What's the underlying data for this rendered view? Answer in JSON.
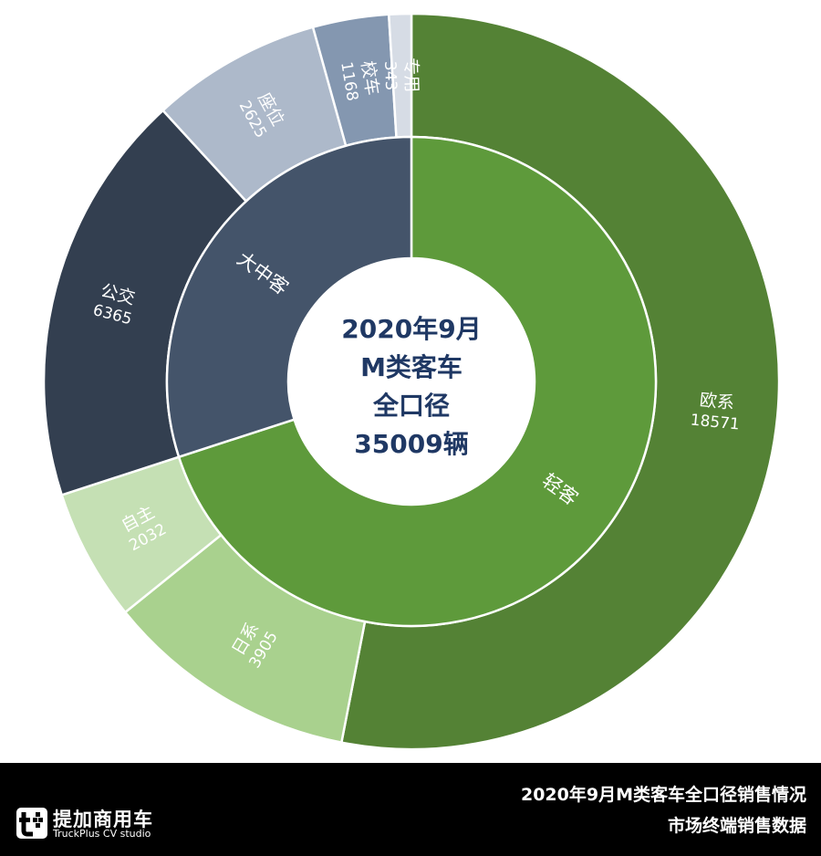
{
  "chart_data": {
    "type": "sunburst",
    "center_text": [
      "2020年9月",
      "M类客车",
      "全口径",
      "35009辆"
    ],
    "total": 35009,
    "inner": [
      {
        "name": "轻客",
        "value": 24508,
        "color": "#5e9a3b"
      },
      {
        "name": "大中客",
        "value": 10501,
        "color": "#44546a"
      }
    ],
    "outer": [
      {
        "name": "欧系",
        "value": 18571,
        "parent": "轻客",
        "color": "#548235"
      },
      {
        "name": "日系",
        "value": 3905,
        "parent": "轻客",
        "color": "#a9d18e"
      },
      {
        "name": "自主",
        "value": 2032,
        "parent": "轻客",
        "color": "#c5e0b4"
      },
      {
        "name": "公交",
        "value": 6365,
        "parent": "大中客",
        "color": "#333f50"
      },
      {
        "name": "座位",
        "value": 2625,
        "parent": "大中客",
        "color": "#adb9ca"
      },
      {
        "name": "校车",
        "value": 1168,
        "parent": "大中客",
        "color": "#8497b0"
      },
      {
        "name": "专用",
        "value": 343,
        "parent": "大中客",
        "color": "#d6dce5"
      }
    ],
    "center_text_color": "#1f3864"
  },
  "footer": {
    "logo_cn": "提加商用车",
    "logo_en": "TruckPlus CV studio",
    "line1": "2020年9月M类客车全口径销售情况",
    "line2": "市场终端销售数据"
  }
}
